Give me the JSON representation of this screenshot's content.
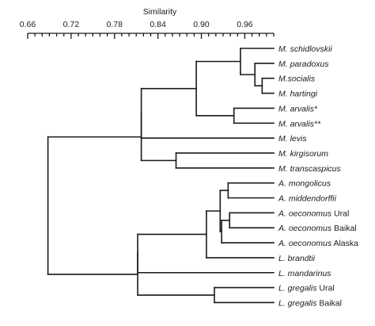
{
  "chart_data": {
    "type": "dendrogram",
    "axis": {
      "title": "Similarity",
      "range": [
        0.66,
        1.0
      ],
      "ticks": [
        "0.66",
        "0.72",
        "0.78",
        "0.84",
        "0.90",
        "0.96"
      ],
      "tick_values": [
        0.66,
        0.72,
        0.78,
        0.84,
        0.9,
        0.96
      ],
      "position": "top"
    },
    "leaves": [
      {
        "name": "M. schidlovskii",
        "suffix": ""
      },
      {
        "name": "M. paradoxus",
        "suffix": ""
      },
      {
        "name": "M.socialis",
        "suffix": ""
      },
      {
        "name": "M. hartingi",
        "suffix": ""
      },
      {
        "name": "M. arvalis*",
        "suffix": ""
      },
      {
        "name": "M. arvalis**",
        "suffix": ""
      },
      {
        "name": "M. levis",
        "suffix": ""
      },
      {
        "name": "M. kirgisorum",
        "suffix": ""
      },
      {
        "name": "M. transcaspicus",
        "suffix": ""
      },
      {
        "name": "A. mongolicus",
        "suffix": ""
      },
      {
        "name": "A. middendorffii",
        "suffix": ""
      },
      {
        "name": "A. oeconomus",
        "suffix": "Ural"
      },
      {
        "name": "A. oeconomus",
        "suffix": "Baikal"
      },
      {
        "name": "A. oeconomus",
        "suffix": "Alaska"
      },
      {
        "name": "L. brandtii",
        "suffix": ""
      },
      {
        "name": "L. mandarinus",
        "suffix": ""
      },
      {
        "name": "L. gregalis",
        "suffix": "Ural"
      },
      {
        "name": "L. gregalis",
        "suffix": "Baikal"
      }
    ],
    "merges": [
      {
        "id": "n1",
        "children": [
          2,
          3
        ],
        "similarity": 0.984
      },
      {
        "id": "n2",
        "children": [
          1,
          "n1"
        ],
        "similarity": 0.974
      },
      {
        "id": "n3",
        "children": [
          0,
          "n2"
        ],
        "similarity": 0.954
      },
      {
        "id": "n4",
        "children": [
          4,
          5
        ],
        "similarity": 0.945
      },
      {
        "id": "n5",
        "children": [
          "n3",
          "n4"
        ],
        "similarity": 0.893
      },
      {
        "id": "n6",
        "children": [
          7,
          8
        ],
        "similarity": 0.865
      },
      {
        "id": "n7",
        "children": [
          "n5",
          6
        ],
        "similarity": 0.817
      },
      {
        "id": "n8",
        "children": [
          "n7",
          "n6"
        ],
        "similarity": 0.817
      },
      {
        "id": "n9",
        "children": [
          9,
          10
        ],
        "similarity": 0.937
      },
      {
        "id": "n10",
        "children": [
          11,
          12
        ],
        "similarity": 0.939
      },
      {
        "id": "n11",
        "children": [
          "n10",
          13
        ],
        "similarity": 0.928
      },
      {
        "id": "n12",
        "children": [
          "n9",
          "n11"
        ],
        "similarity": 0.926
      },
      {
        "id": "n13",
        "children": [
          "n12",
          14
        ],
        "similarity": 0.907
      },
      {
        "id": "n14",
        "children": [
          16,
          17
        ],
        "similarity": 0.918
      },
      {
        "id": "n15",
        "children": [
          "n13",
          15
        ],
        "similarity": 0.812
      },
      {
        "id": "n16",
        "children": [
          "n15",
          "n14"
        ],
        "similarity": 0.812
      },
      {
        "id": "n17",
        "children": [
          "n8",
          "n16"
        ],
        "similarity": 0.688
      }
    ]
  }
}
